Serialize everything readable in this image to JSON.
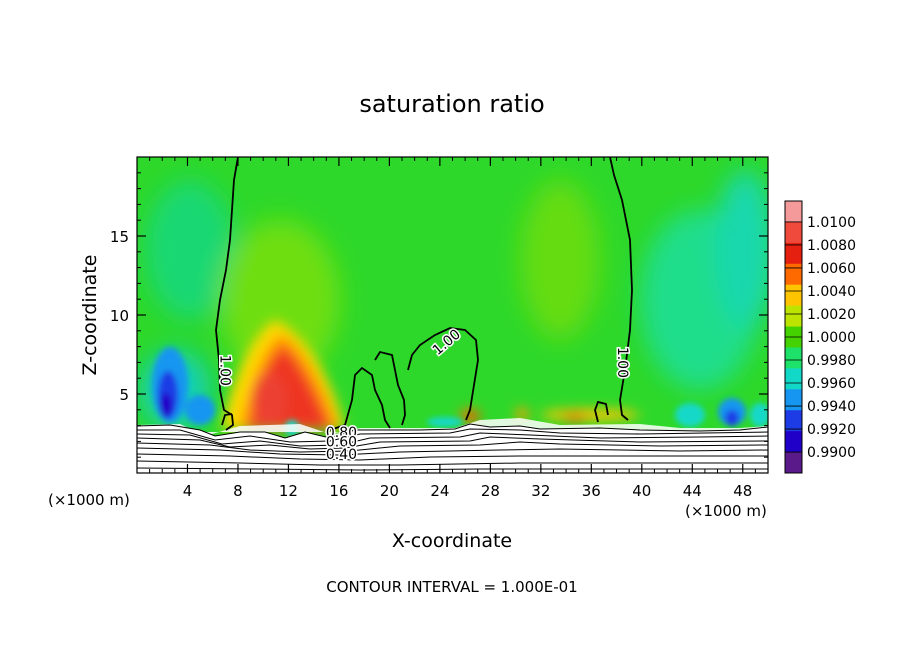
{
  "chart_data": {
    "type": "heatmap",
    "title": "saturation ratio",
    "xlabel": "X-coordinate",
    "ylabel": "Z-coordinate",
    "x_unit": "(×1000 m)",
    "x_unit_right": "(×1000 m)",
    "xlim": [
      0,
      50
    ],
    "ylim": [
      0,
      20
    ],
    "x_ticks": [
      "4",
      "8",
      "12",
      "16",
      "20",
      "24",
      "28",
      "32",
      "36",
      "40",
      "44",
      "48"
    ],
    "x_tick_values": [
      4,
      8,
      12,
      16,
      20,
      24,
      28,
      32,
      36,
      40,
      44,
      48
    ],
    "y_ticks": [
      "5",
      "10",
      "15"
    ],
    "y_tick_values": [
      5,
      10,
      15
    ],
    "footer": "CONTOUR INTERVAL = 1.000E-01",
    "contour_labels": [
      {
        "text": "1.00",
        "x": 7,
        "z": 6.5,
        "rot": 90
      },
      {
        "text": "1.00",
        "x": 24.5,
        "z": 8.3,
        "rot": -40
      },
      {
        "text": "1.00",
        "x": 38.5,
        "z": 7.0,
        "rot": 90
      },
      {
        "text": "0.80",
        "x": 16.2,
        "z": 2.6,
        "rot": 0
      },
      {
        "text": "0.60",
        "x": 16.2,
        "z": 2.0,
        "rot": 0
      },
      {
        "text": "0.40",
        "x": 16.2,
        "z": 1.2,
        "rot": 0
      }
    ],
    "colorbar": {
      "labels": [
        "1.0100",
        "1.0080",
        "1.0060",
        "1.0040",
        "1.0020",
        "1.0000",
        "0.9980",
        "0.9960",
        "0.9940",
        "0.9920",
        "0.9900"
      ],
      "colors": [
        "#f59a9a",
        "#f04a3c",
        "#e52010",
        "#ff6a00",
        "#ffc400",
        "#bde400",
        "#44d200",
        "#1ee16a",
        "#12d8c8",
        "#1696f0",
        "#1e3ce6",
        "#2000c8",
        "#5a1a8a"
      ],
      "min": 0.99,
      "max": 1.01
    },
    "colors": {
      "background": "#2ed82a",
      "terrain": "#ffffff"
    }
  }
}
